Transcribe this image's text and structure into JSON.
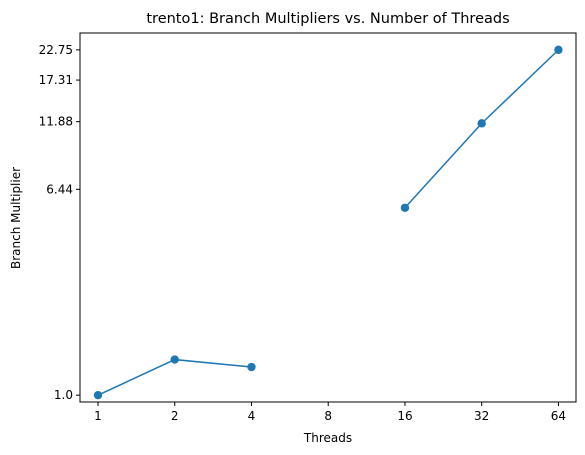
{
  "chart_data": {
    "type": "line",
    "title": "trento1: Branch Multipliers vs. Number of Threads",
    "xlabel": "Threads",
    "ylabel": "Branch Multiplier",
    "x_scale": "log2",
    "y_scale": "log",
    "xticks": [
      1,
      2,
      4,
      8,
      16,
      32,
      64
    ],
    "xtick_labels": [
      "1",
      "2",
      "4",
      "8",
      "16",
      "32",
      "64"
    ],
    "yticks": [
      1.0,
      6.44,
      11.88,
      17.31,
      22.75
    ],
    "ytick_labels": [
      "1.0",
      "6.44",
      "11.88",
      "17.31",
      "22.75"
    ],
    "xlim": [
      0.85,
      75
    ],
    "ylim": [
      0.94,
      26.5
    ],
    "grid": false,
    "color": "#1f77b4",
    "series": [
      {
        "x": [
          1,
          2,
          4,
          8,
          16,
          32,
          64
        ],
        "y": [
          1.0,
          1.38,
          1.29,
          null,
          5.45,
          11.7,
          22.75
        ]
      }
    ]
  }
}
